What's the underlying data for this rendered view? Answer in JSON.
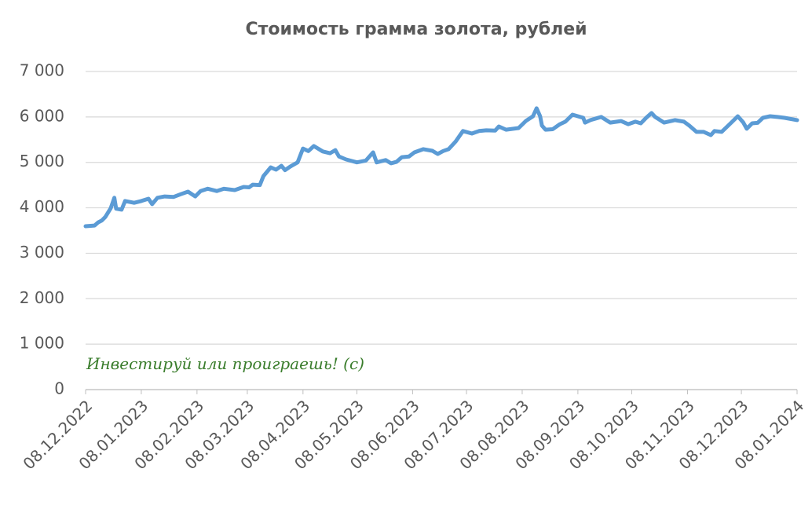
{
  "chart_data": {
    "type": "line",
    "title": "Стоимость грамма золота, рублей",
    "annotation": "Инвестируй или проиграешь! (с)",
    "grid": true,
    "x": [
      "2022-12-08",
      "2022-12-13",
      "2022-12-15",
      "2022-12-17",
      "2022-12-19",
      "2022-12-22",
      "2022-12-24",
      "2022-12-25",
      "2022-12-28",
      "2022-12-30",
      "2023-01-04",
      "2023-01-08",
      "2023-01-12",
      "2023-01-14",
      "2023-01-17",
      "2023-01-21",
      "2023-01-26",
      "2023-01-30",
      "2023-02-03",
      "2023-02-07",
      "2023-02-10",
      "2023-02-14",
      "2023-02-19",
      "2023-02-23",
      "2023-03-01",
      "2023-03-06",
      "2023-03-09",
      "2023-03-11",
      "2023-03-15",
      "2023-03-17",
      "2023-03-21",
      "2023-03-24",
      "2023-03-27",
      "2023-03-29",
      "2023-04-01",
      "2023-04-05",
      "2023-04-08",
      "2023-04-11",
      "2023-04-14",
      "2023-04-19",
      "2023-04-23",
      "2023-04-26",
      "2023-04-28",
      "2023-05-02",
      "2023-05-08",
      "2023-05-13",
      "2023-05-17",
      "2023-05-19",
      "2023-05-24",
      "2023-05-27",
      "2023-05-30",
      "2023-06-02",
      "2023-06-06",
      "2023-06-09",
      "2023-06-14",
      "2023-06-19",
      "2023-06-22",
      "2023-06-25",
      "2023-06-28",
      "2023-07-02",
      "2023-07-06",
      "2023-07-11",
      "2023-07-15",
      "2023-07-19",
      "2023-07-24",
      "2023-07-26",
      "2023-07-30",
      "2023-08-06",
      "2023-08-10",
      "2023-08-14",
      "2023-08-16",
      "2023-08-18",
      "2023-08-19",
      "2023-08-21",
      "2023-08-25",
      "2023-08-29",
      "2023-09-01",
      "2023-09-05",
      "2023-09-08",
      "2023-09-11",
      "2023-09-12",
      "2023-09-15",
      "2023-09-21",
      "2023-09-26",
      "2023-10-02",
      "2023-10-06",
      "2023-10-10",
      "2023-10-13",
      "2023-10-16",
      "2023-10-19",
      "2023-10-21",
      "2023-10-26",
      "2023-11-01",
      "2023-11-06",
      "2023-11-09",
      "2023-11-13",
      "2023-11-17",
      "2023-11-21",
      "2023-11-23",
      "2023-11-27",
      "2023-12-02",
      "2023-12-06",
      "2023-12-09",
      "2023-12-11",
      "2023-12-14",
      "2023-12-17",
      "2023-12-20",
      "2023-12-24",
      "2023-12-28",
      "2024-01-01",
      "2024-01-08"
    ],
    "series": [
      {
        "color": "#5b9bd5",
        "values": [
          3595,
          3610,
          3680,
          3720,
          3800,
          3990,
          4220,
          3980,
          3960,
          4150,
          4110,
          4150,
          4200,
          4080,
          4220,
          4250,
          4240,
          4300,
          4355,
          4250,
          4370,
          4420,
          4370,
          4420,
          4390,
          4460,
          4450,
          4510,
          4500,
          4700,
          4890,
          4840,
          4925,
          4830,
          4910,
          5000,
          5305,
          5250,
          5360,
          5240,
          5200,
          5270,
          5130,
          5065,
          5000,
          5040,
          5220,
          5000,
          5050,
          4980,
          5010,
          5115,
          5130,
          5220,
          5290,
          5255,
          5185,
          5250,
          5290,
          5460,
          5690,
          5635,
          5690,
          5705,
          5700,
          5790,
          5720,
          5755,
          5910,
          6015,
          6190,
          6015,
          5810,
          5720,
          5730,
          5840,
          5895,
          6050,
          6015,
          5980,
          5875,
          5930,
          6000,
          5875,
          5910,
          5840,
          5895,
          5860,
          5980,
          6085,
          6000,
          5875,
          5930,
          5895,
          5810,
          5670,
          5670,
          5600,
          5690,
          5670,
          5860,
          6015,
          5880,
          5740,
          5860,
          5870,
          5980,
          6015,
          6000,
          5980,
          5930
        ]
      }
    ],
    "xlim": [
      "2022-12-08",
      "2024-01-08"
    ],
    "xticks": [
      {
        "value": "2022-12-08",
        "label": "08.12.2022"
      },
      {
        "value": "2023-01-08",
        "label": "08.01.2023"
      },
      {
        "value": "2023-02-08",
        "label": "08.02.2023"
      },
      {
        "value": "2023-03-08",
        "label": "08.03.2023"
      },
      {
        "value": "2023-04-08",
        "label": "08.04.2023"
      },
      {
        "value": "2023-05-08",
        "label": "08.05.2023"
      },
      {
        "value": "2023-06-08",
        "label": "08.06.2023"
      },
      {
        "value": "2023-07-08",
        "label": "08.07.2023"
      },
      {
        "value": "2023-08-08",
        "label": "08.08.2023"
      },
      {
        "value": "2023-09-08",
        "label": "08.09.2023"
      },
      {
        "value": "2023-10-08",
        "label": "08.10.2023"
      },
      {
        "value": "2023-11-08",
        "label": "08.11.2023"
      },
      {
        "value": "2023-12-08",
        "label": "08.12.2023"
      },
      {
        "value": "2024-01-08",
        "label": "08.01.2024"
      }
    ],
    "ylim": [
      0,
      7000
    ],
    "yticks": [
      0,
      {
        "value": 1000,
        "label": "1 000"
      },
      {
        "value": 2000,
        "label": "2 000"
      },
      {
        "value": 3000,
        "label": "3 000"
      },
      {
        "value": 4000,
        "label": "4 000"
      },
      {
        "value": 5000,
        "label": "5 000"
      },
      {
        "value": 6000,
        "label": "6 000"
      },
      {
        "value": 7000,
        "label": "7 000"
      }
    ]
  }
}
